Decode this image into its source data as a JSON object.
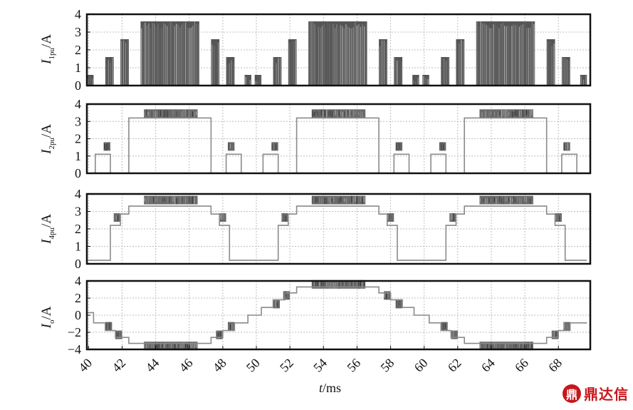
{
  "chart_data": [
    {
      "type": "line",
      "ylabel_main": "I",
      "ylabel_sub": "1pu",
      "ylabel_unit": "/A",
      "ylim": [
        0,
        4
      ],
      "yticks": [
        "0",
        "1",
        "2",
        "3",
        "4"
      ],
      "grid": true,
      "style": "pulse",
      "pulses": [
        {
          "x0": 39.9,
          "x1": 40.3,
          "y": 0.6
        },
        {
          "x0": 41.0,
          "x1": 41.5,
          "y": 1.6
        },
        {
          "x0": 41.9,
          "x1": 42.4,
          "y": 2.6
        },
        {
          "x0": 43.1,
          "x1": 46.6,
          "y": 3.6
        },
        {
          "x0": 47.3,
          "x1": 47.8,
          "y": 2.6
        },
        {
          "x0": 48.2,
          "x1": 48.7,
          "y": 1.6
        },
        {
          "x0": 49.3,
          "x1": 49.7,
          "y": 0.6
        },
        {
          "x0": 49.9,
          "x1": 50.3,
          "y": 0.6
        },
        {
          "x0": 51.0,
          "x1": 51.5,
          "y": 1.6
        },
        {
          "x0": 51.9,
          "x1": 52.4,
          "y": 2.6
        },
        {
          "x0": 53.1,
          "x1": 56.6,
          "y": 3.6
        },
        {
          "x0": 57.3,
          "x1": 57.8,
          "y": 2.6
        },
        {
          "x0": 58.2,
          "x1": 58.7,
          "y": 1.6
        },
        {
          "x0": 59.3,
          "x1": 59.7,
          "y": 0.6
        },
        {
          "x0": 59.9,
          "x1": 60.3,
          "y": 0.6
        },
        {
          "x0": 61.0,
          "x1": 61.5,
          "y": 1.6
        },
        {
          "x0": 61.9,
          "x1": 62.4,
          "y": 2.6
        },
        {
          "x0": 63.1,
          "x1": 66.6,
          "y": 3.6
        },
        {
          "x0": 67.3,
          "x1": 67.8,
          "y": 2.6
        },
        {
          "x0": 68.2,
          "x1": 68.7,
          "y": 1.6
        },
        {
          "x0": 69.3,
          "x1": 69.7,
          "y": 0.6
        }
      ]
    },
    {
      "type": "line",
      "ylabel_main": "I",
      "ylabel_sub": "2pu",
      "ylabel_unit": "/A",
      "ylim": [
        0,
        4
      ],
      "yticks": [
        "0",
        "1",
        "2",
        "3",
        "4"
      ],
      "grid": true,
      "style": "steps",
      "x": [
        40.4,
        40.4,
        41.3,
        41.3,
        42.4,
        42.4,
        47.3,
        47.3,
        48.2,
        48.2,
        49.1,
        49.1,
        50.4,
        50.4,
        51.3,
        51.3,
        52.4,
        52.4,
        57.3,
        57.3,
        58.2,
        58.2,
        59.1,
        59.1,
        60.4,
        60.4,
        61.3,
        61.3,
        62.4,
        62.4,
        67.3,
        67.3,
        68.2,
        68.2,
        69.1,
        69.1
      ],
      "y": [
        0,
        1.1,
        1.1,
        0,
        0,
        3.2,
        3.2,
        0,
        0,
        1.1,
        1.1,
        0,
        0,
        1.1,
        1.1,
        0,
        0,
        3.2,
        3.2,
        0,
        0,
        1.1,
        1.1,
        0,
        0,
        1.1,
        1.1,
        0,
        0,
        3.2,
        3.2,
        0,
        0,
        1.1,
        1.1,
        0
      ],
      "noise_bands": [
        {
          "x0": 40.9,
          "x1": 41.3,
          "y": 1.55
        },
        {
          "x0": 43.3,
          "x1": 46.5,
          "y": 3.45
        },
        {
          "x0": 48.3,
          "x1": 48.7,
          "y": 1.55
        },
        {
          "x0": 50.9,
          "x1": 51.3,
          "y": 1.55
        },
        {
          "x0": 53.3,
          "x1": 56.5,
          "y": 3.45
        },
        {
          "x0": 58.3,
          "x1": 58.7,
          "y": 1.55
        },
        {
          "x0": 60.9,
          "x1": 61.3,
          "y": 1.55
        },
        {
          "x0": 63.3,
          "x1": 66.5,
          "y": 3.45
        },
        {
          "x0": 68.3,
          "x1": 68.7,
          "y": 1.55
        }
      ]
    },
    {
      "type": "line",
      "ylabel_main": "I",
      "ylabel_sub": "4pu",
      "ylabel_unit": "/A",
      "ylim": [
        0,
        4
      ],
      "yticks": [
        "0",
        "1",
        "2",
        "3",
        "4"
      ],
      "grid": true,
      "style": "steps",
      "x": [
        39.9,
        41.3,
        41.3,
        41.9,
        41.9,
        42.4,
        42.4,
        47.3,
        47.3,
        47.8,
        47.8,
        48.4,
        48.4,
        51.3,
        51.3,
        51.9,
        51.9,
        52.4,
        52.4,
        57.3,
        57.3,
        57.8,
        57.8,
        58.4,
        58.4,
        61.3,
        61.3,
        61.9,
        61.9,
        62.4,
        62.4,
        67.3,
        67.3,
        67.8,
        67.8,
        68.4,
        68.4,
        69.7
      ],
      "y": [
        0.2,
        0.2,
        2.2,
        2.2,
        2.85,
        2.85,
        3.3,
        3.3,
        2.85,
        2.85,
        2.2,
        2.2,
        0.2,
        0.2,
        2.2,
        2.2,
        2.85,
        2.85,
        3.3,
        3.3,
        2.85,
        2.85,
        2.2,
        2.2,
        0.2,
        0.2,
        2.2,
        2.2,
        2.85,
        2.85,
        3.3,
        3.3,
        2.85,
        2.85,
        2.2,
        2.2,
        0.2,
        0.2
      ],
      "noise_bands": [
        {
          "x0": 41.5,
          "x1": 41.9,
          "y": 2.65
        },
        {
          "x0": 43.3,
          "x1": 46.5,
          "y": 3.65
        },
        {
          "x0": 47.8,
          "x1": 48.2,
          "y": 2.65
        },
        {
          "x0": 51.5,
          "x1": 51.9,
          "y": 2.65
        },
        {
          "x0": 53.3,
          "x1": 56.5,
          "y": 3.65
        },
        {
          "x0": 57.8,
          "x1": 58.2,
          "y": 2.65
        },
        {
          "x0": 61.5,
          "x1": 61.9,
          "y": 2.65
        },
        {
          "x0": 63.3,
          "x1": 66.5,
          "y": 3.65
        },
        {
          "x0": 67.8,
          "x1": 68.2,
          "y": 2.65
        }
      ]
    },
    {
      "type": "line",
      "ylabel_main": "I",
      "ylabel_sub": "o",
      "ylabel_unit": "/A",
      "ylim": [
        -4,
        4
      ],
      "yticks": [
        "−4",
        "−2",
        "0",
        "2",
        "4"
      ],
      "grid": true,
      "style": "steps",
      "x": [
        39.9,
        40.3,
        40.3,
        41.0,
        41.0,
        41.6,
        41.6,
        42.4,
        42.4,
        47.3,
        47.3,
        48.0,
        48.0,
        48.7,
        48.7,
        49.5,
        49.5,
        50.3,
        50.3,
        51.0,
        51.0,
        51.7,
        51.7,
        52.4,
        52.4,
        57.3,
        57.3,
        58.0,
        58.0,
        58.7,
        58.7,
        59.4,
        59.4,
        60.3,
        60.3,
        61.0,
        61.0,
        61.6,
        61.6,
        62.4,
        62.4,
        67.3,
        67.3,
        68.0,
        68.0,
        68.7,
        68.7,
        69.7
      ],
      "y": [
        0.3,
        0.3,
        -0.9,
        -0.9,
        -1.8,
        -1.8,
        -2.6,
        -2.6,
        -3.3,
        -3.3,
        -2.6,
        -2.6,
        -1.8,
        -1.8,
        -0.9,
        -0.9,
        0.0,
        0.0,
        0.9,
        0.9,
        1.8,
        1.8,
        2.6,
        2.6,
        3.3,
        3.3,
        2.6,
        2.6,
        1.8,
        1.8,
        0.9,
        0.9,
        0.0,
        0.0,
        -0.9,
        -0.9,
        -1.8,
        -1.8,
        -2.6,
        -2.6,
        -3.3,
        -3.3,
        -2.6,
        -2.6,
        -1.8,
        -1.8,
        -0.9,
        -0.9
      ],
      "noise_bands": [
        {
          "x0": 41.0,
          "x1": 41.4,
          "y": -1.3
        },
        {
          "x0": 41.6,
          "x1": 42.0,
          "y": -2.3
        },
        {
          "x0": 43.3,
          "x1": 46.5,
          "y": -3.6
        },
        {
          "x0": 47.6,
          "x1": 48.0,
          "y": -2.3
        },
        {
          "x0": 48.3,
          "x1": 48.7,
          "y": -1.3
        },
        {
          "x0": 51.0,
          "x1": 51.4,
          "y": 1.3
        },
        {
          "x0": 51.6,
          "x1": 52.0,
          "y": 2.3
        },
        {
          "x0": 53.3,
          "x1": 56.5,
          "y": 3.6
        },
        {
          "x0": 57.6,
          "x1": 58.0,
          "y": 2.3
        },
        {
          "x0": 58.3,
          "x1": 58.7,
          "y": 1.3
        },
        {
          "x0": 61.0,
          "x1": 61.4,
          "y": -1.3
        },
        {
          "x0": 61.6,
          "x1": 62.0,
          "y": -2.3
        },
        {
          "x0": 63.3,
          "x1": 66.5,
          "y": -3.6
        },
        {
          "x0": 67.6,
          "x1": 68.0,
          "y": -2.3
        },
        {
          "x0": 68.3,
          "x1": 68.7,
          "y": -1.3
        }
      ]
    }
  ],
  "shared_x": {
    "xlim": [
      39.9,
      69.9
    ],
    "ticks": [
      "40",
      "42",
      "44",
      "46",
      "48",
      "50",
      "52",
      "54",
      "56",
      "58",
      "60",
      "62",
      "64",
      "66",
      "68"
    ],
    "xlabel_main": "t",
    "xlabel_unit": "/ms"
  },
  "watermark": {
    "logo": "鼎",
    "text": "鼎达信"
  },
  "colors": {
    "axis": "#111111",
    "grid": "#bdbdbd",
    "line": "#8a8a8a",
    "pulse": "#555555",
    "brand": "#c8161d"
  }
}
